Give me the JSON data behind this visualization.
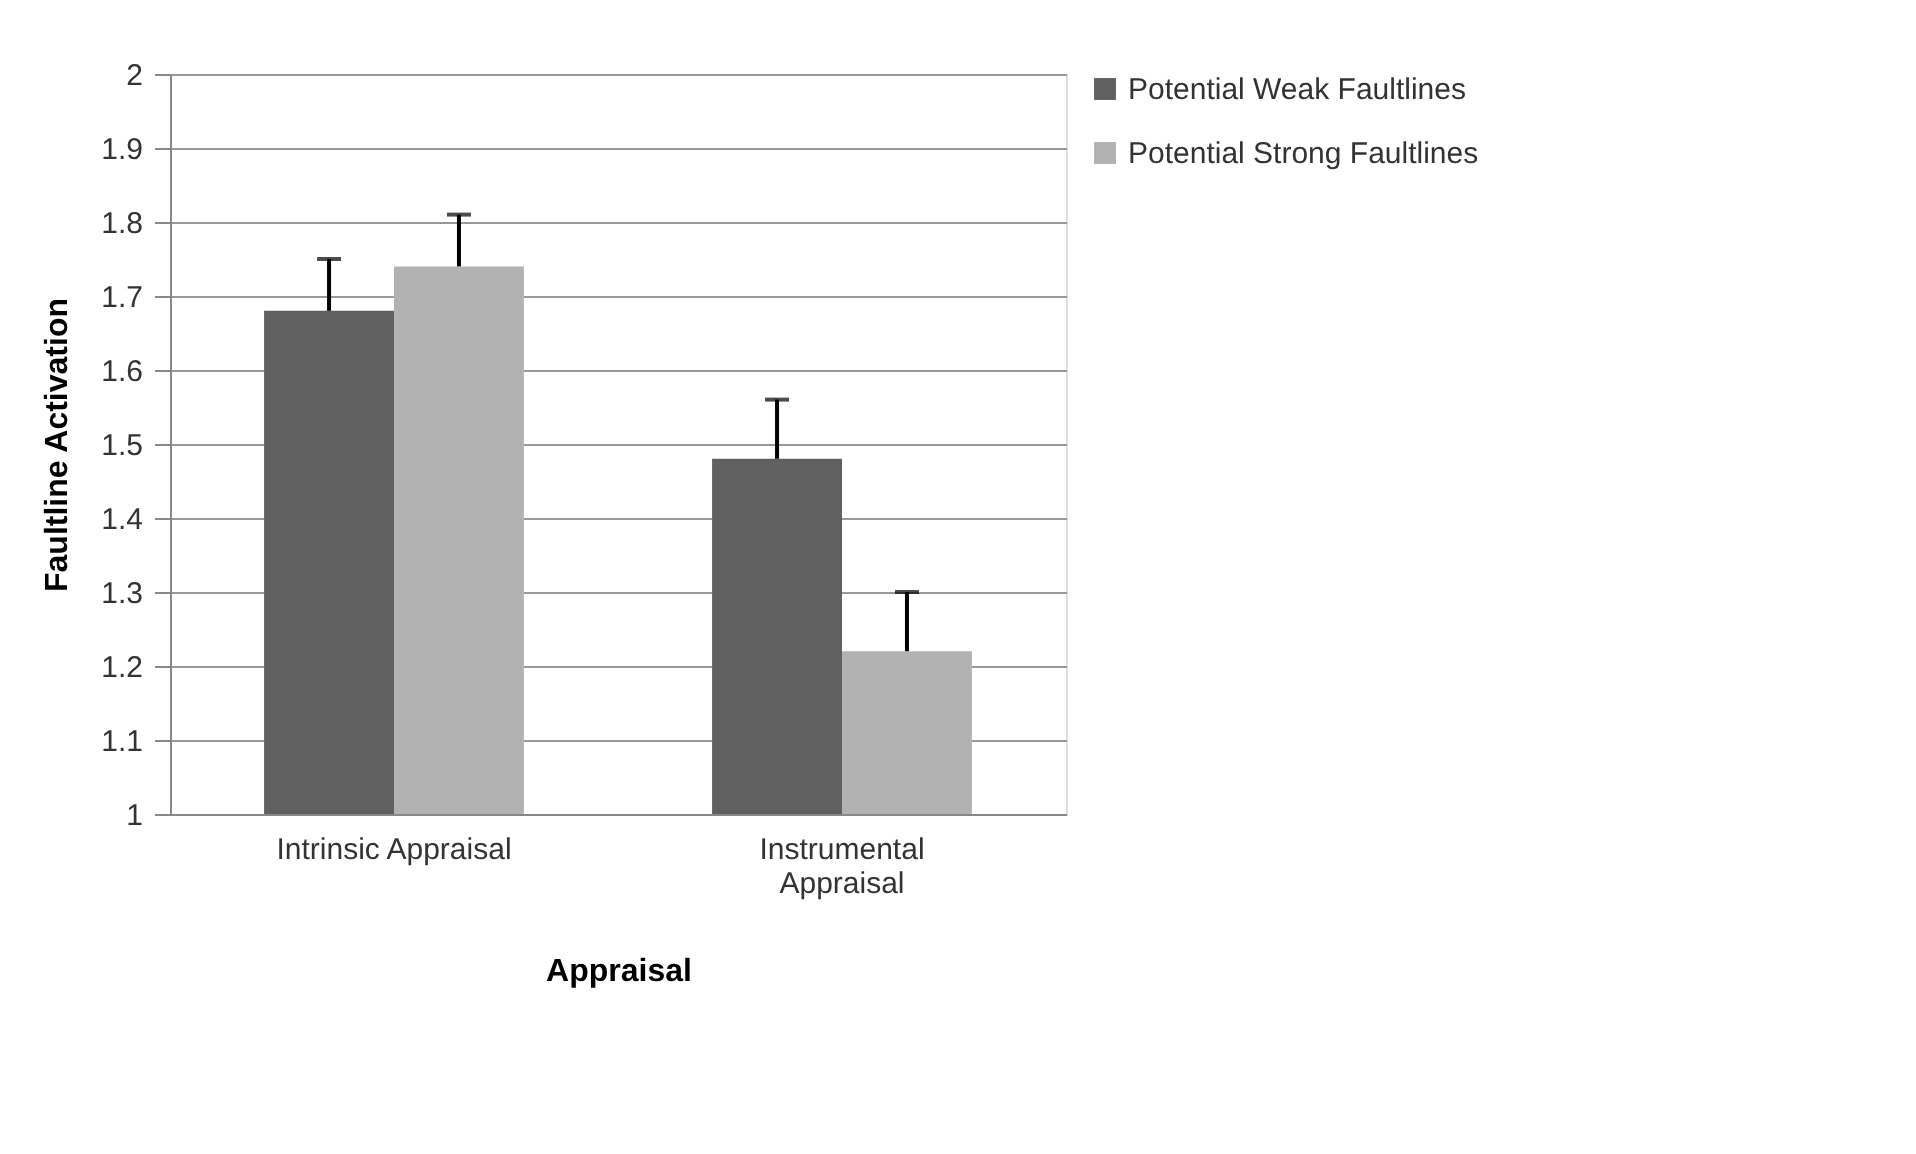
{
  "chart_data": {
    "type": "bar",
    "categories": [
      "Intrinsic Appraisal",
      "Instrumental Appraisal"
    ],
    "xlabel": "Appraisal",
    "ylabel": "Faultline Activation",
    "series": [
      {
        "name": "Potential Weak Faultlines",
        "color": "#606060",
        "values": [
          1.68,
          1.48
        ],
        "errors": [
          [
            1.68,
            1.75
          ],
          [
            1.48,
            1.56
          ]
        ]
      },
      {
        "name": "Potential Strong Faultlines",
        "color": "#b2b2b2",
        "values": [
          1.74,
          1.22
        ],
        "errors": [
          [
            1.74,
            1.81
          ],
          [
            1.22,
            1.3
          ]
        ]
      }
    ],
    "ylim": [
      1,
      2
    ],
    "yticks": [
      1,
      1.1,
      1.2,
      1.3,
      1.4,
      1.5,
      1.6,
      1.7,
      1.8,
      1.9,
      2
    ],
    "grid": "y",
    "legend": "right"
  }
}
